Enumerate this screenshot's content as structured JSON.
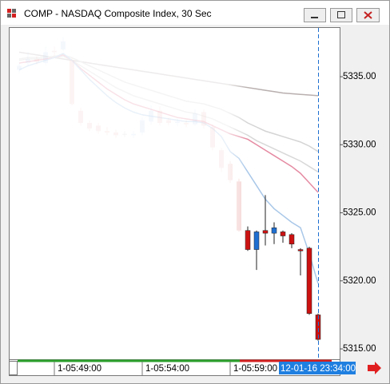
{
  "window": {
    "title": "COMP - NASDAQ Composite Index, 30 Sec"
  },
  "chart_data": {
    "type": "candlestick",
    "categories": [
      null,
      null,
      null,
      null,
      "1-05:49:00",
      null,
      null,
      null,
      null,
      null,
      null,
      null,
      null,
      null,
      "1-05:54:00",
      null,
      null,
      null,
      null,
      null,
      null,
      null,
      null,
      null,
      "1-05:59:00",
      null,
      null,
      null,
      null,
      null,
      null,
      null,
      null,
      null,
      "12-01-16 23:34:00"
    ],
    "open": [
      5335.5,
      5336.0,
      5336.3,
      5336.0,
      5336.9,
      5337.0,
      5336.2,
      5332.5,
      5331.6,
      5331.4,
      5331.0,
      5330.9,
      5330.8,
      5330.7,
      5330.9,
      5331.7,
      5332.5,
      5331.8,
      5331.6,
      5331.6,
      5331.5,
      5332.4,
      5331.3,
      5329.6,
      5328.6,
      5327.3,
      5323.7,
      5322.3,
      5323.7,
      5323.5,
      5323.6,
      5323.4,
      5322.3,
      5322.4,
      5317.5
    ],
    "high": [
      5336.0,
      5336.8,
      5336.5,
      5337.2,
      5337.2,
      5337.9,
      5336.4,
      5332.7,
      5331.8,
      5331.6,
      5331.3,
      5331.1,
      5331.0,
      5331.0,
      5332.0,
      5332.9,
      5332.8,
      5332.0,
      5331.9,
      5331.8,
      5332.6,
      5332.6,
      5331.5,
      5329.8,
      5328.8,
      5327.5,
      5324.0,
      5323.7,
      5326.3,
      5324.3,
      5323.7,
      5323.5,
      5322.4,
      5322.5,
      5317.6
    ],
    "low": [
      5335.3,
      5335.8,
      5335.9,
      5335.9,
      5336.5,
      5336.9,
      5332.9,
      5331.4,
      5331.0,
      5330.8,
      5330.7,
      5330.5,
      5330.6,
      5330.5,
      5330.7,
      5331.5,
      5331.4,
      5331.4,
      5331.4,
      5331.3,
      5331.4,
      5331.2,
      5329.6,
      5328.0,
      5327.2,
      5323.6,
      5322.2,
      5320.8,
      5322.6,
      5322.7,
      5322.8,
      5322.4,
      5320.4,
      5317.5,
      5315.6
    ],
    "close": [
      5335.8,
      5336.3,
      5336.1,
      5336.8,
      5336.8,
      5337.6,
      5333.0,
      5331.6,
      5331.2,
      5331.0,
      5330.9,
      5330.7,
      5330.8,
      5330.8,
      5331.8,
      5332.5,
      5331.6,
      5331.6,
      5331.7,
      5331.5,
      5332.3,
      5331.4,
      5329.8,
      5328.3,
      5327.4,
      5323.7,
      5322.3,
      5323.6,
      5323.5,
      5323.9,
      5323.3,
      5322.7,
      5322.2,
      5317.6,
      5315.7
    ],
    "up_color": "#1f6fd1",
    "down_color": "#cc1111",
    "doji_color": "#222222",
    "overlays": [
      {
        "color": "#b9afaf",
        "values": [
          5336.8,
          5336.7,
          5336.6,
          5336.5,
          5336.4,
          5336.3,
          5336.2,
          5336.1,
          5336.0,
          5335.9,
          5335.8,
          5335.7,
          5335.6,
          5335.5,
          5335.4,
          5335.3,
          5335.2,
          5335.1,
          5335.0,
          5334.9,
          5334.8,
          5334.7,
          5334.6,
          5334.5,
          5334.4,
          5334.3,
          5334.2,
          5334.1,
          5334.0,
          5333.9,
          5333.8,
          5333.75,
          5333.7,
          5333.65,
          5333.6
        ]
      },
      {
        "color": "#d4d4d4",
        "values": [
          5336.3,
          5336.4,
          5336.4,
          5336.4,
          5336.5,
          5336.6,
          5336.4,
          5336.1,
          5335.8,
          5335.5,
          5335.2,
          5334.9,
          5334.6,
          5334.4,
          5334.2,
          5334.0,
          5333.8,
          5333.6,
          5333.4,
          5333.2,
          5333.1,
          5333.0,
          5332.8,
          5332.6,
          5332.3,
          5332.0,
          5331.6,
          5331.3,
          5331.0,
          5330.8,
          5330.6,
          5330.4,
          5330.2,
          5329.9,
          5329.5
        ]
      },
      {
        "color": "#d8d8d8",
        "values": [
          5336.2,
          5336.3,
          5336.3,
          5336.3,
          5336.4,
          5336.5,
          5336.2,
          5335.8,
          5335.4,
          5335.0,
          5334.6,
          5334.2,
          5333.9,
          5333.6,
          5333.4,
          5333.2,
          5333.0,
          5332.8,
          5332.6,
          5332.4,
          5332.3,
          5332.1,
          5331.9,
          5331.6,
          5331.3,
          5331.0,
          5330.7,
          5330.3,
          5330.0,
          5329.7,
          5329.4,
          5329.1,
          5328.8,
          5328.4,
          5328.0
        ]
      },
      {
        "color": "#e58aa2",
        "values": [
          5336.0,
          5336.1,
          5336.2,
          5336.3,
          5336.4,
          5336.6,
          5336.2,
          5335.6,
          5335.1,
          5334.6,
          5334.1,
          5333.7,
          5333.3,
          5333.0,
          5332.8,
          5332.6,
          5332.4,
          5332.2,
          5332.0,
          5331.9,
          5331.8,
          5331.7,
          5331.4,
          5331.1,
          5330.8,
          5330.6,
          5330.4,
          5330.0,
          5329.6,
          5329.2,
          5328.8,
          5328.4,
          5327.9,
          5327.2,
          5326.5
        ]
      },
      {
        "color": "#a8c7e8",
        "values": [
          5335.5,
          5335.8,
          5336.0,
          5336.2,
          5336.4,
          5336.7,
          5336.2,
          5335.5,
          5334.8,
          5334.2,
          5333.6,
          5333.1,
          5332.7,
          5332.4,
          5332.2,
          5332.1,
          5332.0,
          5331.9,
          5331.8,
          5331.7,
          5331.7,
          5331.6,
          5331.2,
          5330.6,
          5329.5,
          5329.0,
          5328.0,
          5327.0,
          5326.0,
          5325.3,
          5324.8,
          5324.3,
          5323.9,
          5322.0,
          5319.8
        ]
      }
    ],
    "ylim": [
      5314.24,
      5338.58
    ],
    "yticks": [
      {
        "value": 5315,
        "label": "5315.00"
      },
      {
        "value": 5320,
        "label": "5320.00"
      },
      {
        "value": 5325,
        "label": "5325.00"
      },
      {
        "value": 5330,
        "label": "5330.00"
      },
      {
        "value": 5335,
        "label": "5335.00"
      }
    ]
  }
}
